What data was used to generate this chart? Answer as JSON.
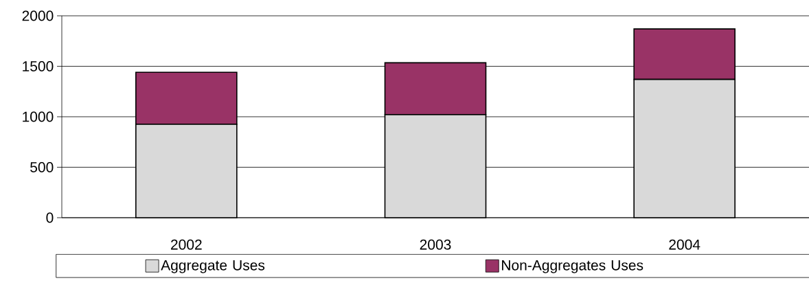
{
  "chart_data": {
    "type": "bar",
    "stacked": true,
    "categories": [
      "2002",
      "2003",
      "2004"
    ],
    "series": [
      {
        "name": "Aggregate Uses",
        "color": "#d9d9d9",
        "values": [
          925,
          1020,
          1370
        ]
      },
      {
        "name": "Non-Aggregates Uses",
        "color": "#993366",
        "values": [
          515,
          515,
          500
        ]
      }
    ],
    "ylim": [
      0,
      2000
    ],
    "yticks": [
      0,
      500,
      1000,
      1500,
      2000
    ],
    "grid": "y",
    "legend": "bottom"
  }
}
